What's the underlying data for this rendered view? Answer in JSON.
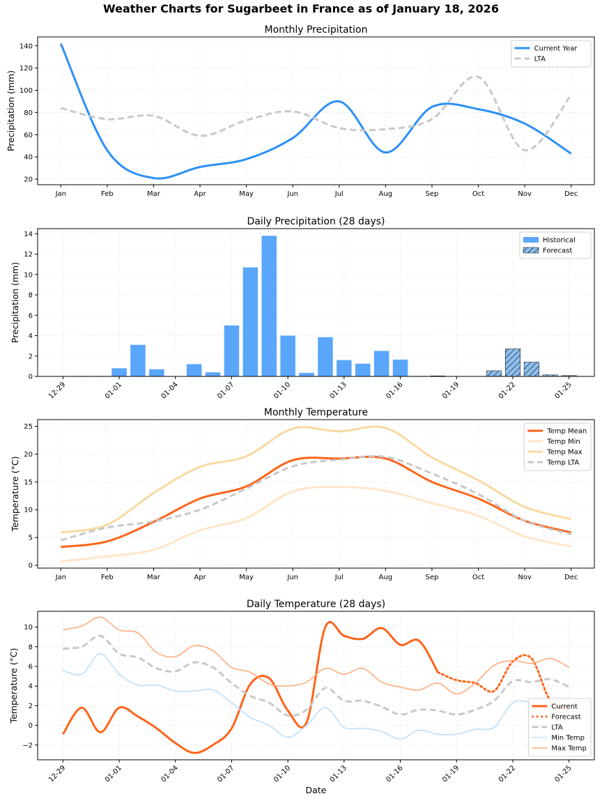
{
  "title": "Weather Charts for Sugarbeet in France as of January 18, 2026",
  "chart_data": [
    {
      "type": "line",
      "title": "Monthly Precipitation",
      "xlabel": "",
      "ylabel": "Precipitation (mm)",
      "categories": [
        "Jan",
        "Feb",
        "Mar",
        "Apr",
        "May",
        "Jun",
        "Jul",
        "Aug",
        "Sep",
        "Oct",
        "Nov",
        "Dec"
      ],
      "yticks": [
        20,
        40,
        60,
        80,
        100,
        120,
        140
      ],
      "ylim": [
        15,
        148
      ],
      "grid": true,
      "legend": "top-right",
      "series": [
        {
          "name": "Current Year",
          "color": "#2b8ff5",
          "style": "solid",
          "values": [
            142,
            46,
            21,
            31,
            38,
            57,
            90,
            44,
            85,
            83,
            70,
            43
          ]
        },
        {
          "name": "LTA",
          "color": "#c8c8c8",
          "style": "dashed",
          "values": [
            84,
            74,
            77,
            59,
            73,
            81,
            66,
            65,
            74,
            112,
            46,
            96
          ]
        }
      ]
    },
    {
      "type": "bar",
      "title": "Daily Precipitation (28 days)",
      "xlabel": "",
      "ylabel": "Precipitation (mm)",
      "categories": [
        "12-29",
        "12-30",
        "12-31",
        "01-01",
        "01-02",
        "01-03",
        "01-04",
        "01-05",
        "01-06",
        "01-07",
        "01-08",
        "01-09",
        "01-10",
        "01-11",
        "01-12",
        "01-13",
        "01-14",
        "01-15",
        "01-16",
        "01-17",
        "01-18",
        "01-19",
        "01-20",
        "01-21",
        "01-22",
        "01-23",
        "01-24",
        "01-25"
      ],
      "xticks": [
        "12-29",
        "01-01",
        "01-04",
        "01-07",
        "01-10",
        "01-13",
        "01-16",
        "01-19",
        "01-22",
        "01-25"
      ],
      "yticks": [
        0,
        2,
        4,
        6,
        8,
        10,
        12,
        14
      ],
      "ylim": [
        0,
        14.5
      ],
      "grid": true,
      "legend": "top-right",
      "forecast_start": "01-18",
      "series": [
        {
          "name": "Historical",
          "color": "#59a6fb",
          "values": [
            0,
            0.05,
            0.05,
            0.8,
            3.1,
            0.7,
            0,
            1.2,
            0.4,
            5.0,
            10.7,
            13.8,
            4.0,
            0.35,
            3.85,
            1.6,
            1.25,
            2.5,
            1.65,
            0.05,
            null,
            null,
            null,
            null,
            null,
            null,
            null,
            null
          ]
        },
        {
          "name": "Forecast",
          "color": "#8dbfef",
          "hatch": "///",
          "values": [
            null,
            null,
            null,
            null,
            null,
            null,
            null,
            null,
            null,
            null,
            null,
            null,
            null,
            null,
            null,
            null,
            null,
            null,
            null,
            null,
            0.05,
            0,
            0,
            0.55,
            2.7,
            1.4,
            0.15,
            0.08
          ]
        }
      ]
    },
    {
      "type": "line",
      "title": "Monthly Temperature",
      "xlabel": "",
      "ylabel": "Temperature (°C)",
      "categories": [
        "Jan",
        "Feb",
        "Mar",
        "Apr",
        "May",
        "Jun",
        "Jul",
        "Aug",
        "Sep",
        "Oct",
        "Nov",
        "Dec"
      ],
      "yticks": [
        0,
        5,
        10,
        15,
        20,
        25
      ],
      "ylim": [
        -0.5,
        26.2
      ],
      "grid": true,
      "legend": "top-right",
      "series": [
        {
          "name": "Temp Mean",
          "color": "#ff6319",
          "style": "solid",
          "width": 3,
          "values": [
            3.3,
            4.3,
            7.8,
            12.0,
            14.2,
            18.9,
            19.2,
            19.2,
            15.0,
            12.0,
            8.0,
            5.9
          ]
        },
        {
          "name": "Temp Min",
          "color": "#ffe6c8",
          "style": "solid",
          "width": 3,
          "values": [
            0.7,
            1.6,
            2.8,
            6.3,
            8.5,
            13.3,
            14.1,
            13.4,
            11.2,
            8.9,
            5.2,
            3.4
          ]
        },
        {
          "name": "Temp Max",
          "color": "#f8d9a2",
          "style": "solid",
          "width": 3,
          "values": [
            5.9,
            7.3,
            13.0,
            17.7,
            19.6,
            24.6,
            24.1,
            24.7,
            19.4,
            15.3,
            10.5,
            8.3
          ]
        },
        {
          "name": "Temp LTA",
          "color": "#c8c8c8",
          "style": "dashed",
          "width": 3,
          "values": [
            4.5,
            6.8,
            7.9,
            10.0,
            13.8,
            17.8,
            19.0,
            19.5,
            16.5,
            12.8,
            8.0,
            5.6
          ]
        }
      ]
    },
    {
      "type": "line",
      "title": "Daily Temperature (28 days)",
      "xlabel": "Date",
      "ylabel": "Temperature (°C)",
      "categories": [
        "12-29",
        "12-30",
        "12-31",
        "01-01",
        "01-02",
        "01-03",
        "01-04",
        "01-05",
        "01-06",
        "01-07",
        "01-08",
        "01-09",
        "01-10",
        "01-11",
        "01-12",
        "01-13",
        "01-14",
        "01-15",
        "01-16",
        "01-17",
        "01-18",
        "01-19",
        "01-20",
        "01-21",
        "01-22",
        "01-23",
        "01-24",
        "01-25"
      ],
      "xticks": [
        "12-29",
        "01-01",
        "01-04",
        "01-07",
        "01-10",
        "01-13",
        "01-16",
        "01-19",
        "01-22",
        "01-25"
      ],
      "yticks": [
        -2,
        0,
        2,
        4,
        6,
        8,
        10
      ],
      "ylim": [
        -3.5,
        11.6
      ],
      "grid": true,
      "legend": "bottom-right",
      "series": [
        {
          "name": "Current",
          "color": "#ff6319",
          "style": "solid",
          "width": 3,
          "values": [
            -0.9,
            1.8,
            -0.7,
            1.8,
            0.9,
            -0.3,
            -1.8,
            -2.8,
            -2.0,
            -0.3,
            4.2,
            4.8,
            1.5,
            0.3,
            10.0,
            9.1,
            8.8,
            9.9,
            8.2,
            8.6,
            5.4,
            null,
            null,
            null,
            null,
            null,
            null,
            null
          ]
        },
        {
          "name": "Forecast",
          "color": "#ff6319",
          "style": "dotted",
          "width": 3,
          "values": [
            null,
            null,
            null,
            null,
            null,
            null,
            null,
            null,
            null,
            null,
            null,
            null,
            null,
            null,
            null,
            null,
            null,
            null,
            null,
            null,
            5.4,
            4.6,
            4.3,
            3.5,
            6.5,
            6.8,
            2.5,
            1.5
          ]
        },
        {
          "name": "LTA",
          "color": "#c8c8c8",
          "style": "dashed",
          "width": 3,
          "values": [
            7.8,
            8.0,
            9.1,
            7.3,
            6.9,
            5.8,
            5.5,
            6.4,
            5.9,
            4.3,
            3.0,
            2.3,
            1.0,
            1.6,
            3.8,
            2.5,
            2.5,
            1.9,
            1.1,
            1.6,
            1.5,
            1.1,
            1.6,
            2.5,
            4.5,
            4.4,
            4.7,
            3.9
          ]
        },
        {
          "name": "Min Temp",
          "color": "#bcdffb",
          "style": "solid",
          "width": 1.6,
          "values": [
            5.6,
            5.2,
            7.3,
            5.2,
            4.1,
            4.1,
            3.5,
            3.5,
            3.6,
            2.3,
            0.8,
            0.0,
            -1.2,
            0.0,
            1.8,
            -0.2,
            -0.3,
            -0.6,
            -1.4,
            -0.5,
            -0.9,
            -0.9,
            -0.4,
            -0.2,
            2.3,
            2.4,
            2.6,
            2.4
          ]
        },
        {
          "name": "Max Temp",
          "color": "#ffab7c",
          "style": "solid",
          "width": 1.6,
          "values": [
            9.7,
            10.1,
            11.0,
            9.7,
            9.4,
            7.4,
            7.0,
            8.1,
            7.6,
            5.9,
            5.4,
            4.2,
            4.0,
            4.4,
            5.8,
            5.2,
            5.8,
            4.4,
            3.9,
            3.6,
            4.3,
            3.2,
            4.3,
            6.1,
            6.6,
            6.3,
            6.8,
            5.9
          ]
        }
      ]
    }
  ]
}
